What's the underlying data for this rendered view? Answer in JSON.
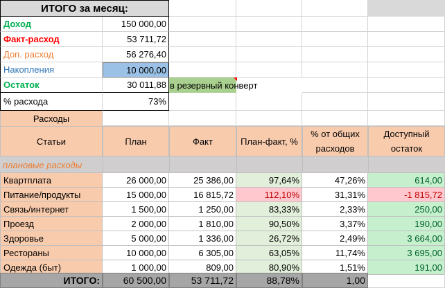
{
  "summary": {
    "title": "ИТОГО за месяц:",
    "rows": [
      {
        "label": "Доход",
        "value": "150 000,00"
      },
      {
        "label": "Факт-расход",
        "value": "53 711,72"
      },
      {
        "label": "Доп. расход",
        "value": "56 276,40"
      },
      {
        "label": "Накопления",
        "value": "10 000,00"
      },
      {
        "label": "Остаток",
        "value": "30 011,88"
      },
      {
        "label": "% расхода",
        "value": "73%"
      }
    ],
    "note": "в резервный конверт"
  },
  "expenses": {
    "section_title": "Расходы",
    "headers": [
      "Статьи",
      "План",
      "Факт",
      "План-факт, %",
      "% от общих расходов",
      "Доступный остаток"
    ],
    "group_label": "плановые расходы",
    "rows": [
      [
        "Квартплата",
        "26 000,00",
        "25 386,00",
        "97,64%",
        "47,26%",
        "614,00"
      ],
      [
        "Питание/продукты",
        "15 000,00",
        "16 815,72",
        "112,10%",
        "31,31%",
        "-1 815,72"
      ],
      [
        "Связь/интернет",
        "1 500,00",
        "1 250,00",
        "83,33%",
        "2,33%",
        "250,00"
      ],
      [
        "Проезд",
        "2 000,00",
        "1 810,00",
        "90,50%",
        "3,37%",
        "190,00"
      ],
      [
        "Здоровье",
        "5 000,00",
        "1 336,00",
        "26,72%",
        "2,49%",
        "3 664,00"
      ],
      [
        "Рестораны",
        "10 000,00",
        "6 305,00",
        "63,05%",
        "11,74%",
        "3 695,00"
      ],
      [
        "Одежда (быт)",
        "1 000,00",
        "809,00",
        "80,90%",
        "1,51%",
        "191,00"
      ]
    ],
    "total": [
      "ИТОГО:",
      "60 500,00",
      "53 711,72",
      "88,78%",
      "1,00",
      ""
    ]
  },
  "colors": {
    "income": "#00b050",
    "expense": "#ff0000",
    "extra": "#ed7d31",
    "savings": "#2f75b5",
    "remainder": "#00b050",
    "peach": "#f8cbad",
    "over_budget": "#ffc7ce",
    "available": "#c6efce"
  }
}
